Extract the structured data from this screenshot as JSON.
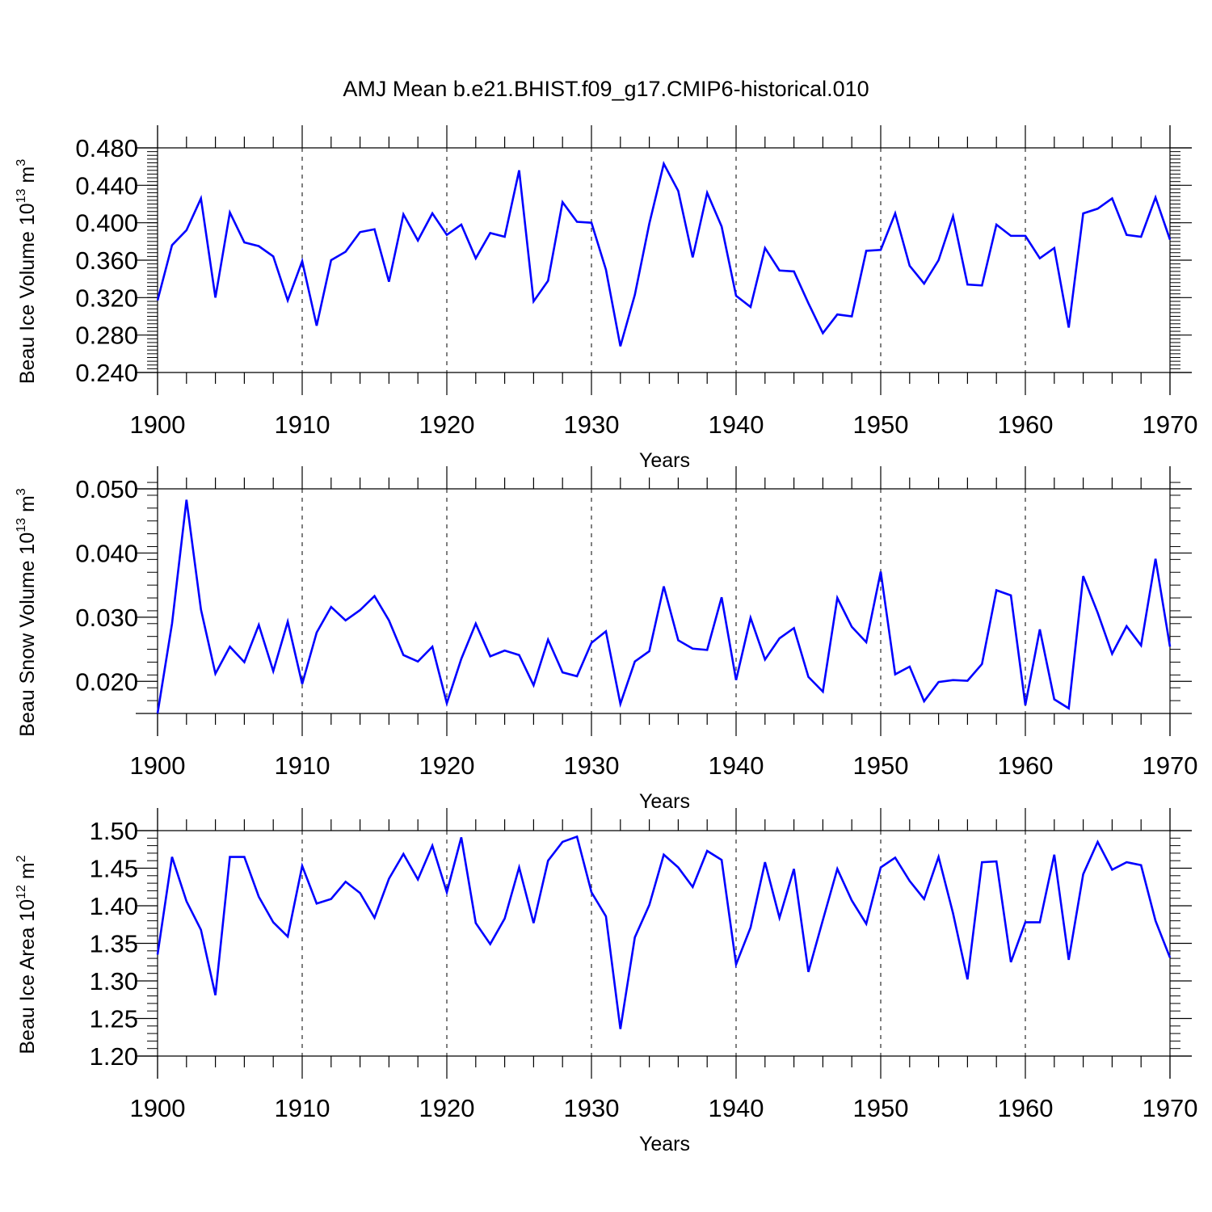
{
  "chart_data": {
    "title": "AMJ Mean b.e21.BHIST.f09_g17.CMIP6-historical.010",
    "panels": [
      {
        "id": "ice-volume",
        "type": "line",
        "ylabel": {
          "main": "Beau Ice Volume 10",
          "exp": "13",
          "unit": " m",
          "unit_exp": "3"
        },
        "xlabel": "Years",
        "xlim": [
          1900,
          1970
        ],
        "ylim": [
          0.24,
          0.48
        ],
        "yticks": [
          0.24,
          0.28,
          0.32,
          0.36,
          0.4,
          0.44,
          0.48
        ],
        "ytick_labels": [
          "0.240",
          "0.280",
          "0.320",
          "0.360",
          "0.400",
          "0.440",
          "0.480"
        ],
        "xticks": [
          1900,
          1910,
          1920,
          1930,
          1940,
          1950,
          1960,
          1970
        ],
        "xtick_labels": [
          "1900",
          "1910",
          "1920",
          "1930",
          "1940",
          "1950",
          "1960",
          "1970"
        ],
        "series": [
          {
            "name": "Beau Ice Volume",
            "color": "#0000ff",
            "x_start": 1900,
            "values": [
              0.317,
              0.376,
              0.392,
              0.426,
              0.32,
              0.411,
              0.379,
              0.375,
              0.364,
              0.317,
              0.359,
              0.29,
              0.36,
              0.369,
              0.39,
              0.393,
              0.337,
              0.409,
              0.381,
              0.41,
              0.387,
              0.398,
              0.362,
              0.389,
              0.385,
              0.456,
              0.316,
              0.338,
              0.422,
              0.401,
              0.4,
              0.35,
              0.268,
              0.323,
              0.399,
              0.463,
              0.434,
              0.363,
              0.432,
              0.396,
              0.322,
              0.31,
              0.373,
              0.349,
              0.348,
              0.314,
              0.282,
              0.302,
              0.3,
              0.37,
              0.371,
              0.41,
              0.354,
              0.335,
              0.36,
              0.407,
              0.334,
              0.333,
              0.398,
              0.386,
              0.386,
              0.362,
              0.373,
              0.288,
              0.41,
              0.415,
              0.426,
              0.387,
              0.385,
              0.427,
              0.382
            ]
          }
        ]
      },
      {
        "id": "snow-volume",
        "type": "line",
        "ylabel": {
          "main": "Beau Snow Volume 10",
          "exp": "13",
          "unit": " m",
          "unit_exp": "3"
        },
        "xlabel": "Years",
        "xlim": [
          1900,
          1970
        ],
        "ylim": [
          0.015,
          0.05
        ],
        "yticks": [
          0.02,
          0.03,
          0.04,
          0.05
        ],
        "ytick_labels": [
          "0.020",
          "0.030",
          "0.040",
          "0.050"
        ],
        "xticks": [
          1900,
          1910,
          1920,
          1930,
          1940,
          1950,
          1960,
          1970
        ],
        "xtick_labels": [
          "1900",
          "1910",
          "1920",
          "1930",
          "1940",
          "1950",
          "1960",
          "1970"
        ],
        "series": [
          {
            "name": "Beau Snow Volume",
            "color": "#0000ff",
            "x_start": 1900,
            "values": [
              0.015,
              0.029,
              0.0483,
              0.0312,
              0.0212,
              0.0254,
              0.023,
              0.0288,
              0.0216,
              0.0293,
              0.0196,
              0.0276,
              0.0316,
              0.0295,
              0.0311,
              0.0333,
              0.0295,
              0.0241,
              0.0231,
              0.0254,
              0.0166,
              0.0235,
              0.029,
              0.0239,
              0.0248,
              0.0241,
              0.0194,
              0.0265,
              0.0214,
              0.0208,
              0.026,
              0.0278,
              0.0165,
              0.0231,
              0.0247,
              0.0348,
              0.0264,
              0.0251,
              0.0249,
              0.0331,
              0.0202,
              0.0299,
              0.0234,
              0.0267,
              0.0283,
              0.0207,
              0.0184,
              0.033,
              0.0285,
              0.0261,
              0.0371,
              0.0211,
              0.0223,
              0.0169,
              0.0199,
              0.0202,
              0.0201,
              0.0227,
              0.0342,
              0.0334,
              0.0163,
              0.0281,
              0.0172,
              0.0158,
              0.0364,
              0.0307,
              0.0243,
              0.0286,
              0.0256,
              0.0391,
              0.0254
            ]
          }
        ]
      },
      {
        "id": "ice-area",
        "type": "line",
        "ylabel": {
          "main": "Beau Ice Area 10",
          "exp": "12",
          "unit": " m",
          "unit_exp": "2"
        },
        "xlabel": "Years",
        "xlim": [
          1900,
          1970
        ],
        "ylim": [
          1.2,
          1.5
        ],
        "yticks": [
          1.2,
          1.25,
          1.3,
          1.35,
          1.4,
          1.45,
          1.5
        ],
        "ytick_labels": [
          "1.20",
          "1.25",
          "1.30",
          "1.35",
          "1.40",
          "1.45",
          "1.50"
        ],
        "xticks": [
          1900,
          1910,
          1920,
          1930,
          1940,
          1950,
          1960,
          1970
        ],
        "xtick_labels": [
          "1900",
          "1910",
          "1920",
          "1930",
          "1940",
          "1950",
          "1960",
          "1970"
        ],
        "series": [
          {
            "name": "Beau Ice Area",
            "color": "#0000ff",
            "x_start": 1900,
            "values": [
              1.335,
              1.465,
              1.406,
              1.368,
              1.281,
              1.465,
              1.465,
              1.412,
              1.378,
              1.359,
              1.453,
              1.403,
              1.409,
              1.432,
              1.417,
              1.384,
              1.436,
              1.469,
              1.435,
              1.48,
              1.418,
              1.491,
              1.377,
              1.349,
              1.383,
              1.451,
              1.377,
              1.46,
              1.485,
              1.492,
              1.418,
              1.386,
              1.236,
              1.358,
              1.401,
              1.468,
              1.451,
              1.425,
              1.473,
              1.461,
              1.322,
              1.371,
              1.458,
              1.384,
              1.449,
              1.312,
              1.381,
              1.449,
              1.407,
              1.376,
              1.451,
              1.464,
              1.433,
              1.409,
              1.465,
              1.39,
              1.302,
              1.458,
              1.459,
              1.325,
              1.378,
              1.378,
              1.468,
              1.328,
              1.442,
              1.485,
              1.448,
              1.458,
              1.454,
              1.38,
              1.331
            ]
          }
        ]
      }
    ]
  }
}
